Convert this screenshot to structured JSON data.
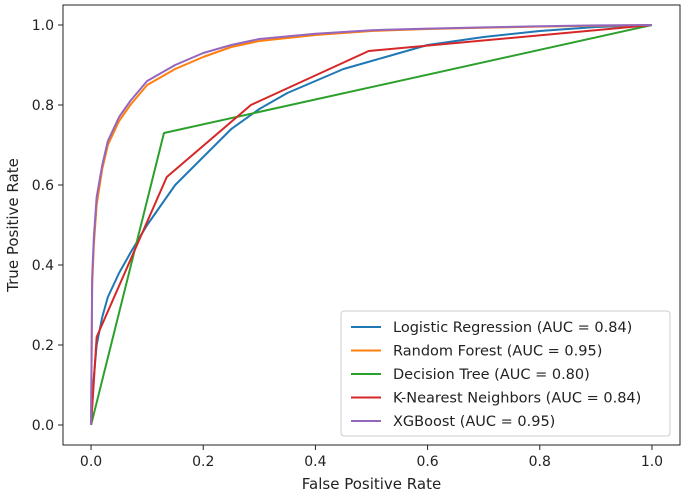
{
  "chart_data": {
    "type": "line",
    "xlabel": "False Positive Rate",
    "ylabel": "True Positive Rate",
    "xlim": [
      -0.05,
      1.05
    ],
    "ylim": [
      -0.05,
      1.05
    ],
    "xticks": [
      "0.0",
      "0.2",
      "0.4",
      "0.6",
      "0.8",
      "1.0"
    ],
    "yticks": [
      "0.0",
      "0.2",
      "0.4",
      "0.6",
      "0.8",
      "1.0"
    ],
    "grid": false,
    "legend_position": "lower-right",
    "series": [
      {
        "name": "Logistic Regression (AUC = 0.84)",
        "color": "#1f77b4",
        "points": [
          [
            0,
            0
          ],
          [
            0.005,
            0.12
          ],
          [
            0.01,
            0.2
          ],
          [
            0.02,
            0.27
          ],
          [
            0.03,
            0.32
          ],
          [
            0.05,
            0.38
          ],
          [
            0.07,
            0.43
          ],
          [
            0.1,
            0.5
          ],
          [
            0.13,
            0.56
          ],
          [
            0.15,
            0.6
          ],
          [
            0.2,
            0.67
          ],
          [
            0.25,
            0.74
          ],
          [
            0.3,
            0.79
          ],
          [
            0.35,
            0.83
          ],
          [
            0.4,
            0.86
          ],
          [
            0.45,
            0.89
          ],
          [
            0.5,
            0.91
          ],
          [
            0.55,
            0.93
          ],
          [
            0.6,
            0.95
          ],
          [
            0.7,
            0.97
          ],
          [
            0.8,
            0.985
          ],
          [
            0.9,
            0.995
          ],
          [
            1,
            1
          ]
        ]
      },
      {
        "name": "Random Forest (AUC = 0.95)",
        "color": "#ff7f0e",
        "points": [
          [
            0,
            0
          ],
          [
            0.002,
            0.35
          ],
          [
            0.005,
            0.45
          ],
          [
            0.01,
            0.55
          ],
          [
            0.02,
            0.64
          ],
          [
            0.03,
            0.7
          ],
          [
            0.05,
            0.76
          ],
          [
            0.07,
            0.8
          ],
          [
            0.1,
            0.85
          ],
          [
            0.15,
            0.89
          ],
          [
            0.2,
            0.92
          ],
          [
            0.25,
            0.945
          ],
          [
            0.3,
            0.96
          ],
          [
            0.4,
            0.975
          ],
          [
            0.5,
            0.985
          ],
          [
            0.6,
            0.99
          ],
          [
            0.7,
            0.993
          ],
          [
            0.8,
            0.996
          ],
          [
            0.9,
            0.998
          ],
          [
            1,
            1
          ]
        ]
      },
      {
        "name": "Decision Tree (AUC = 0.80)",
        "color": "#2ca02c",
        "points": [
          [
            0,
            0
          ],
          [
            0.13,
            0.73
          ],
          [
            1,
            1
          ]
        ]
      },
      {
        "name": "K-Nearest Neighbors (AUC = 0.84)",
        "color": "#d62728",
        "points": [
          [
            0,
            0
          ],
          [
            0.01,
            0.22
          ],
          [
            0.135,
            0.62
          ],
          [
            0.285,
            0.8
          ],
          [
            0.495,
            0.935
          ],
          [
            1,
            1
          ]
        ]
      },
      {
        "name": "XGBoost (AUC = 0.95)",
        "color": "#9467bd",
        "points": [
          [
            0,
            0
          ],
          [
            0.002,
            0.37
          ],
          [
            0.005,
            0.47
          ],
          [
            0.01,
            0.57
          ],
          [
            0.02,
            0.65
          ],
          [
            0.03,
            0.71
          ],
          [
            0.05,
            0.77
          ],
          [
            0.07,
            0.81
          ],
          [
            0.1,
            0.86
          ],
          [
            0.15,
            0.9
          ],
          [
            0.2,
            0.93
          ],
          [
            0.25,
            0.95
          ],
          [
            0.3,
            0.965
          ],
          [
            0.4,
            0.978
          ],
          [
            0.5,
            0.987
          ],
          [
            0.6,
            0.991
          ],
          [
            0.7,
            0.994
          ],
          [
            0.8,
            0.997
          ],
          [
            0.9,
            0.999
          ],
          [
            1,
            1
          ]
        ]
      }
    ]
  }
}
